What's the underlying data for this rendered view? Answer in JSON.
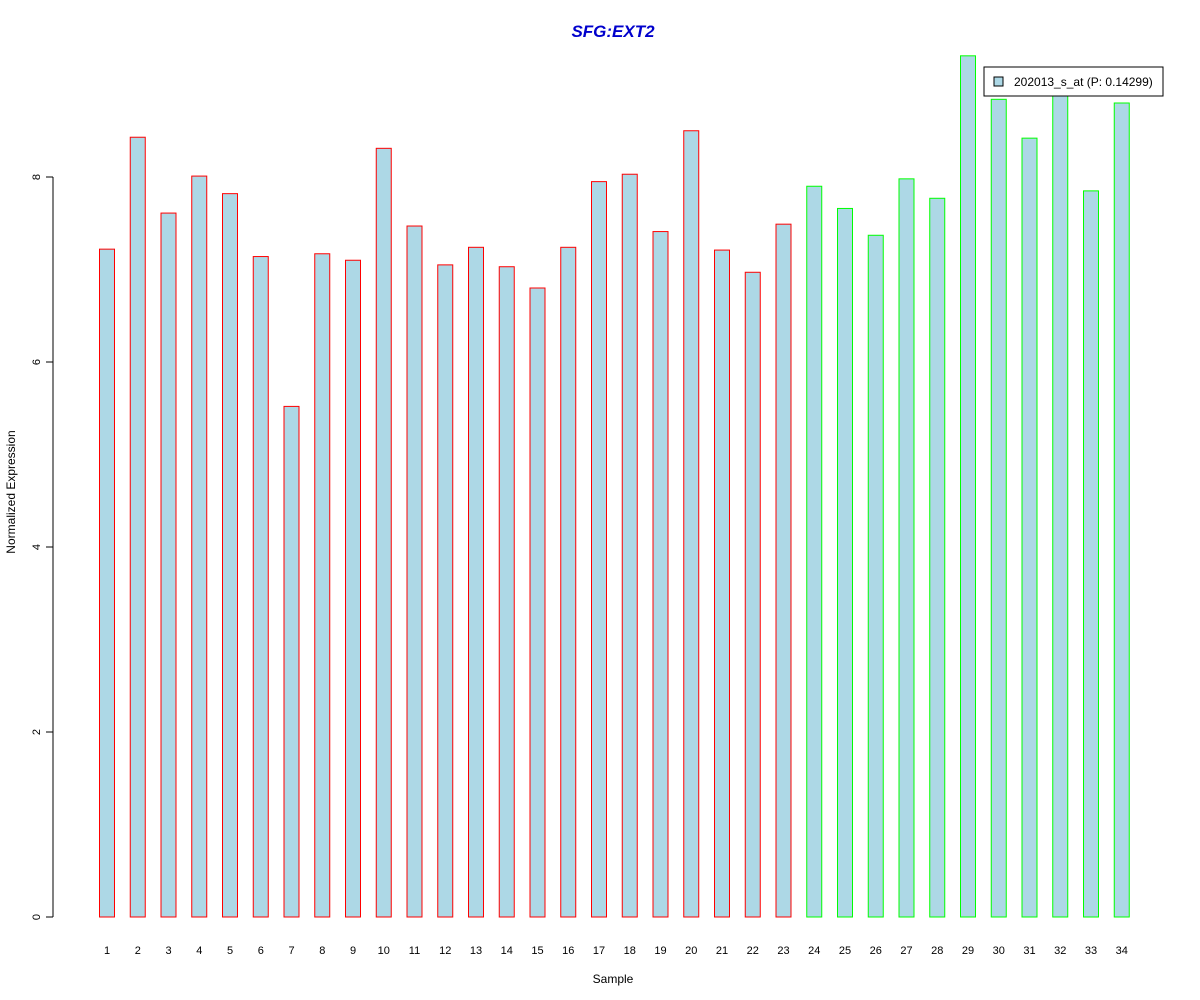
{
  "chart_data": {
    "type": "bar",
    "title": "SFG:EXT2",
    "xlabel": "Sample",
    "ylabel": "Normalized Expression",
    "ylim": [
      0,
      9.3
    ],
    "yticks": [
      0,
      2,
      4,
      6,
      8
    ],
    "categories": [
      "1",
      "2",
      "3",
      "4",
      "5",
      "6",
      "7",
      "8",
      "9",
      "10",
      "11",
      "12",
      "13",
      "14",
      "15",
      "16",
      "17",
      "18",
      "19",
      "20",
      "21",
      "22",
      "23",
      "24",
      "25",
      "26",
      "27",
      "28",
      "29",
      "30",
      "31",
      "32",
      "33",
      "34"
    ],
    "values": [
      7.22,
      8.43,
      7.61,
      8.01,
      7.82,
      7.14,
      5.52,
      7.17,
      7.1,
      8.31,
      7.47,
      7.05,
      7.24,
      7.03,
      6.8,
      7.24,
      7.95,
      8.03,
      7.41,
      8.5,
      7.21,
      6.97,
      7.49,
      7.9,
      7.66,
      7.37,
      7.98,
      7.77,
      9.31,
      8.84,
      8.42,
      8.89,
      7.85,
      8.8
    ],
    "bar_fill": "#add8e6",
    "group_colors": [
      "#ff0000",
      "#00ff00"
    ],
    "groups": [
      "red",
      "red",
      "red",
      "red",
      "red",
      "red",
      "red",
      "red",
      "red",
      "red",
      "red",
      "red",
      "red",
      "red",
      "red",
      "red",
      "red",
      "red",
      "red",
      "red",
      "red",
      "red",
      "red",
      "green",
      "green",
      "green",
      "green",
      "green",
      "green",
      "green",
      "green",
      "green",
      "green",
      "green"
    ],
    "legend": {
      "label": "202013_s_at (P: 0.14299)",
      "position": "top-right"
    },
    "grid": false,
    "title_color": "#0000cc"
  }
}
